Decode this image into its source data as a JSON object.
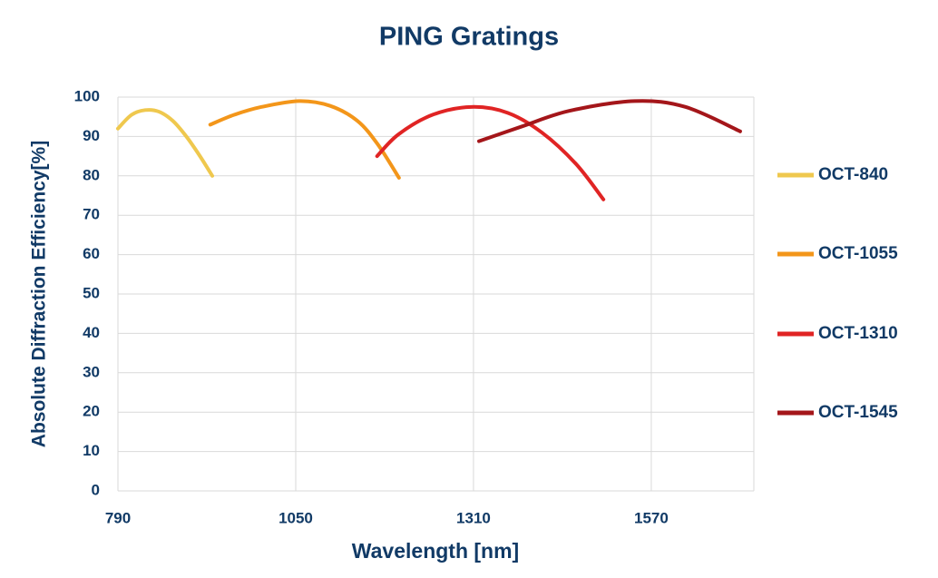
{
  "chart_data": {
    "type": "line",
    "title": "PING Gratings",
    "x_label": "Wavelength [nm]",
    "y_label": "Absolute Diffraction Efficiency[%]",
    "xlim": [
      790,
      1720
    ],
    "xticks": [
      790,
      1050,
      1310,
      1570
    ],
    "ylim": [
      0,
      100
    ],
    "yticks": [
      0,
      10,
      20,
      30,
      40,
      50,
      60,
      70,
      80,
      90,
      100
    ],
    "grid": true,
    "legend": "right",
    "series": [
      {
        "name": "OCT-840",
        "color": "#efc84e",
        "x": [
          790,
          810,
          830,
          850,
          870,
          890,
          910,
          928
        ],
        "values": [
          92,
          95.5,
          96.7,
          96.3,
          94,
          90,
          85,
          80
        ]
      },
      {
        "name": "OCT-1055",
        "color": "#f3961a",
        "x": [
          925,
          960,
          1000,
          1055,
          1100,
          1140,
          1170,
          1201
        ],
        "values": [
          93,
          95.5,
          97.5,
          99,
          97.8,
          94,
          88,
          79.5
        ]
      },
      {
        "name": "OCT-1310",
        "color": "#e02424",
        "x": [
          1169,
          1200,
          1250,
          1307,
          1360,
          1410,
          1460,
          1500
        ],
        "values": [
          85,
          90.5,
          95.5,
          97.5,
          96,
          91,
          83,
          74
        ]
      },
      {
        "name": "OCT-1545",
        "color": "#a4161a",
        "x": [
          1318,
          1380,
          1450,
          1546,
          1620,
          1700
        ],
        "values": [
          88.8,
          92.5,
          96.5,
          99,
          97.5,
          91.3
        ]
      }
    ]
  }
}
